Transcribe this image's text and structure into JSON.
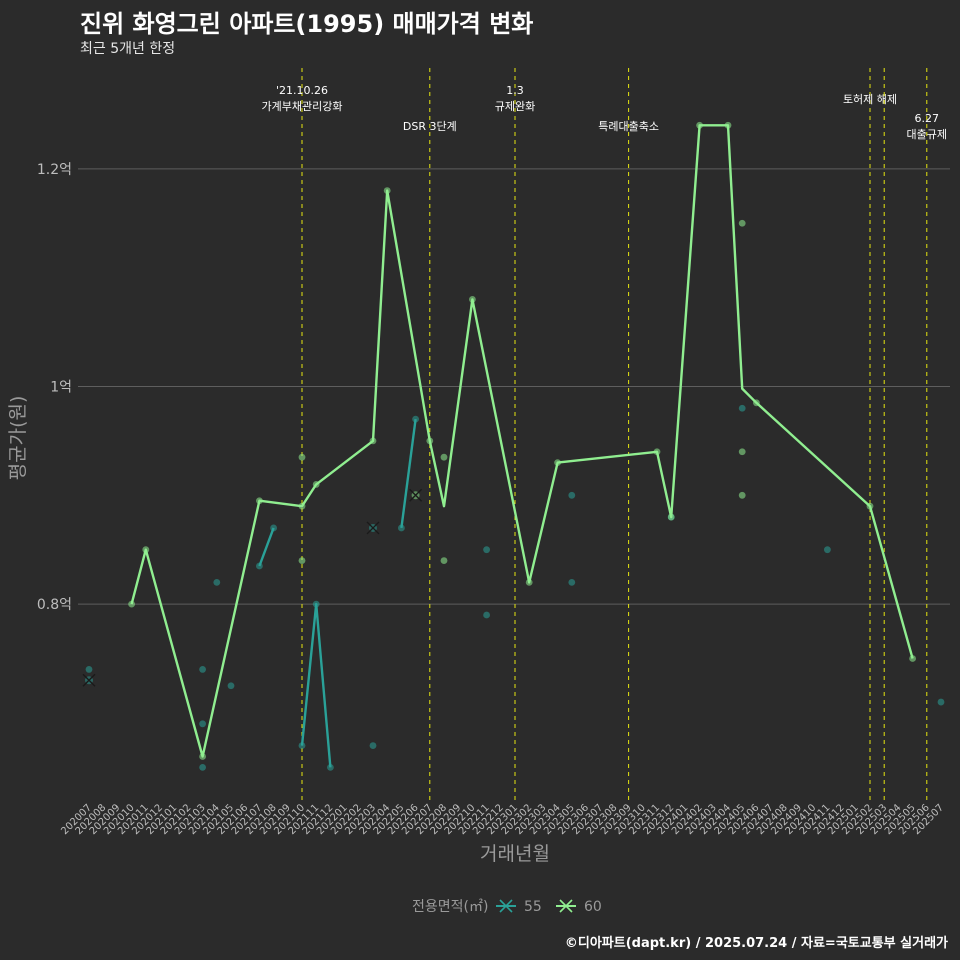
{
  "title": "진위 화영그린 아파트(1995) 매매가격 변화",
  "subtitle": "최근 5개년 한정",
  "caption": "©디아파트(dapt.kr) / 2025.07.24 / 자료=국토교통부 실거래가",
  "colors": {
    "background": "#2b2b2b",
    "s55": "#2aa198",
    "s60": "#90ee90",
    "event": "#e5e510",
    "grid": "#5e5e5e"
  },
  "chart_data": {
    "type": "line",
    "xlabel": "거래년월",
    "ylabel": "평균가(원)",
    "legend_title": "전용면적(㎡)",
    "legend_position": "bottom",
    "ylim": [
      0.62,
      1.3
    ],
    "y_ticks": [
      {
        "value": 0.8,
        "label": "0.8억"
      },
      {
        "value": 1.0,
        "label": "1억"
      },
      {
        "value": 1.2,
        "label": "1.2억"
      }
    ],
    "months": [
      "202007",
      "202008",
      "202009",
      "202010",
      "202011",
      "202012",
      "202101",
      "202102",
      "202103",
      "202104",
      "202105",
      "202106",
      "202107",
      "202108",
      "202109",
      "202110",
      "202111",
      "202112",
      "202201",
      "202202",
      "202203",
      "202204",
      "202205",
      "202206",
      "202207",
      "202208",
      "202209",
      "202210",
      "202211",
      "202212",
      "202301",
      "202302",
      "202303",
      "202304",
      "202305",
      "202306",
      "202307",
      "202308",
      "202309",
      "202310",
      "202311",
      "202312",
      "202401",
      "202402",
      "202403",
      "202404",
      "202405",
      "202406",
      "202407",
      "202408",
      "202409",
      "202410",
      "202411",
      "202412",
      "202501",
      "202502",
      "202503",
      "202504",
      "202505",
      "202506",
      "202507"
    ],
    "x_tick_labels": [
      "202007",
      "202008",
      "202009",
      "202010",
      "202011",
      "202012",
      "202101",
      "202102",
      "202103",
      "202104",
      "202105",
      "202106",
      "202107",
      "202108",
      "202109",
      "202110",
      "202111",
      "202112",
      "202201",
      "202202",
      "202203",
      "202204",
      "202205",
      "202206",
      "202207",
      "202208",
      "202209",
      "202210",
      "202211",
      "202212",
      "202301",
      "202302",
      "202303",
      "202304",
      "202305",
      "202306",
      "202307",
      "202308",
      "202309",
      "202310",
      "202311",
      "202312",
      "202401",
      "202402",
      "202403",
      "202404",
      "202405",
      "202406",
      "202407",
      "202408",
      "202409",
      "202410",
      "202411",
      "202412",
      "202501",
      "202502",
      "202503",
      "202504",
      "202505",
      "202506",
      "202507"
    ],
    "series": [
      {
        "name": "55",
        "line": [
          [
            "202007",
            0.73
          ],
          [
            "202107",
            0.835
          ],
          [
            "202108",
            0.87
          ],
          [
            "202110",
            0.67
          ],
          [
            "202111",
            0.8
          ],
          [
            "202112",
            0.65
          ],
          [
            "202203",
            0.67
          ],
          [
            "202205",
            0.87
          ],
          [
            "202206",
            0.97
          ]
        ],
        "points": [
          [
            "202007",
            0.74
          ],
          [
            "202103",
            0.74
          ],
          [
            "202103",
            0.69
          ],
          [
            "202103",
            0.65
          ],
          [
            "202104",
            0.82
          ],
          [
            "202105",
            0.725
          ],
          [
            "202107",
            0.835
          ],
          [
            "202108",
            0.87
          ],
          [
            "202110",
            0.67
          ],
          [
            "202111",
            0.8
          ],
          [
            "202112",
            0.65
          ],
          [
            "202203",
            0.67
          ],
          [
            "202205",
            0.87
          ],
          [
            "202206",
            0.97
          ],
          [
            "202211",
            0.85
          ],
          [
            "202211",
            0.79
          ],
          [
            "202305",
            0.9
          ],
          [
            "202305",
            0.82
          ],
          [
            "202312",
            0.88
          ],
          [
            "202405",
            0.98
          ],
          [
            "202411",
            0.85
          ],
          [
            "202507",
            0.71
          ]
        ],
        "marked": [
          [
            "202007",
            0.73
          ],
          [
            "202203",
            0.87
          ]
        ]
      },
      {
        "name": "60",
        "line": [
          [
            "202010",
            0.8
          ],
          [
            "202011",
            0.85
          ],
          [
            "202103",
            0.66
          ],
          [
            "202107",
            0.895
          ],
          [
            "202110",
            0.89
          ],
          [
            "202111",
            0.91
          ],
          [
            "202203",
            0.95
          ],
          [
            "202204",
            1.18
          ],
          [
            "202207",
            0.95
          ],
          [
            "202208",
            0.89
          ],
          [
            "202210",
            1.08
          ],
          [
            "202302",
            0.82
          ],
          [
            "202304",
            0.93
          ],
          [
            "202311",
            0.94
          ],
          [
            "202312",
            0.88
          ],
          [
            "202402",
            1.24
          ],
          [
            "202404",
            1.24
          ],
          [
            "202405",
            0.998
          ],
          [
            "202406",
            0.985
          ],
          [
            "202502",
            0.89
          ],
          [
            "202505",
            0.75
          ]
        ],
        "points": [
          [
            "202010",
            0.8
          ],
          [
            "202011",
            0.85
          ],
          [
            "202103",
            0.66
          ],
          [
            "202107",
            0.895
          ],
          [
            "202110",
            0.935
          ],
          [
            "202110",
            0.84
          ],
          [
            "202110",
            0.89
          ],
          [
            "202111",
            0.91
          ],
          [
            "202203",
            0.95
          ],
          [
            "202204",
            1.18
          ],
          [
            "202207",
            0.95
          ],
          [
            "202208",
            0.935
          ],
          [
            "202208",
            0.84
          ],
          [
            "202210",
            1.08
          ],
          [
            "202302",
            0.82
          ],
          [
            "202304",
            0.93
          ],
          [
            "202311",
            0.94
          ],
          [
            "202312",
            0.88
          ],
          [
            "202402",
            1.24
          ],
          [
            "202404",
            1.24
          ],
          [
            "202405",
            1.15
          ],
          [
            "202405",
            0.94
          ],
          [
            "202405",
            0.9
          ],
          [
            "202406",
            0.985
          ],
          [
            "202502",
            0.89
          ],
          [
            "202505",
            0.75
          ]
        ],
        "marked": [
          [
            "202206",
            0.9
          ]
        ]
      }
    ],
    "events": [
      {
        "month": "202110",
        "lines": [
          "'21.10.26",
          "가계부채관리강화"
        ],
        "level": 0
      },
      {
        "month": "202207",
        "lines": [
          "DSR 3단계"
        ],
        "level": 2
      },
      {
        "month": "202301",
        "lines": [
          "1.3",
          "규제완화"
        ],
        "level": 0
      },
      {
        "month": "202309",
        "lines": [
          "특례대출축소"
        ],
        "level": 2
      },
      {
        "month": "202502",
        "lines": [
          "토허제 해제"
        ],
        "level": 1
      },
      {
        "month": "202503",
        "lines": [],
        "level": 1
      },
      {
        "month": "202506",
        "lines": [
          "6.27",
          "대출규제"
        ],
        "level": 3
      }
    ]
  }
}
